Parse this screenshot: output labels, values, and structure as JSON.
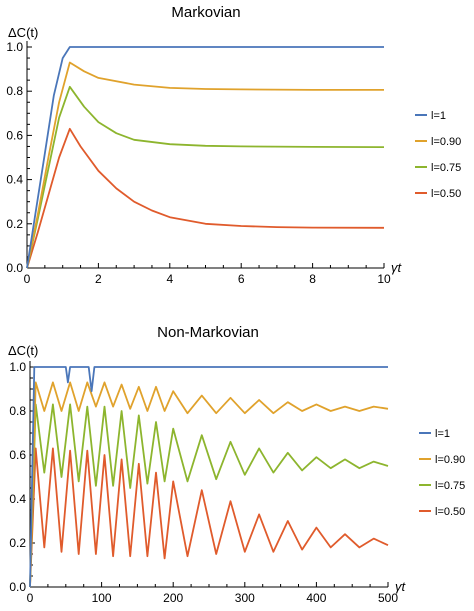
{
  "colors": {
    "l1": "#4a76b9",
    "l090": "#e0a22c",
    "l075": "#8db52e",
    "l050": "#e05b2c"
  },
  "chart_data": [
    {
      "type": "line",
      "title": "Markovian",
      "ylabel": "ΔC(t)",
      "xlabel": "γt",
      "xlim": [
        0,
        10
      ],
      "ylim": [
        0,
        1.0
      ],
      "x_ticks": [
        0,
        2,
        4,
        6,
        8,
        10
      ],
      "y_ticks": [
        0.0,
        0.2,
        0.4,
        0.6,
        0.8,
        1.0
      ],
      "x_tick_labels": [
        "0",
        "2",
        "4",
        "6",
        "8",
        "10"
      ],
      "y_tick_labels": [
        "0.0",
        "0.2",
        "0.4",
        "0.6",
        "0.8",
        "1.0"
      ],
      "legend_position": "right",
      "series": [
        {
          "name": "l=1",
          "color_key": "l1",
          "x": [
            0,
            0.25,
            0.5,
            0.75,
            1.0,
            1.2,
            10
          ],
          "y": [
            0,
            0.26,
            0.52,
            0.78,
            0.95,
            1.0,
            1.0
          ]
        },
        {
          "name": "l=0.90",
          "color_key": "l090",
          "x": [
            0,
            0.3,
            0.6,
            0.9,
            1.2,
            1.6,
            2,
            3,
            4,
            5,
            6,
            8,
            10
          ],
          "y": [
            0,
            0.24,
            0.5,
            0.75,
            0.93,
            0.89,
            0.86,
            0.83,
            0.815,
            0.81,
            0.808,
            0.806,
            0.806
          ]
        },
        {
          "name": "l=0.75",
          "color_key": "l075",
          "x": [
            0,
            0.3,
            0.6,
            0.9,
            1.2,
            1.6,
            2,
            2.5,
            3,
            4,
            5,
            6,
            8,
            10
          ],
          "y": [
            0,
            0.22,
            0.45,
            0.68,
            0.82,
            0.73,
            0.66,
            0.61,
            0.58,
            0.56,
            0.553,
            0.55,
            0.548,
            0.547
          ]
        },
        {
          "name": "l=0.50",
          "color_key": "l050",
          "x": [
            0,
            0.3,
            0.6,
            0.9,
            1.2,
            1.5,
            2,
            2.5,
            3,
            3.5,
            4,
            5,
            6,
            7,
            8,
            10
          ],
          "y": [
            0,
            0.16,
            0.33,
            0.5,
            0.63,
            0.55,
            0.44,
            0.36,
            0.3,
            0.26,
            0.23,
            0.2,
            0.19,
            0.185,
            0.183,
            0.182
          ]
        }
      ]
    },
    {
      "type": "line",
      "title": "Non-Markovian",
      "ylabel": "ΔC(t)",
      "xlabel": "γt",
      "xlim": [
        0,
        500
      ],
      "ylim": [
        0,
        1.0
      ],
      "x_ticks": [
        0,
        100,
        200,
        300,
        400,
        500
      ],
      "y_ticks": [
        0.0,
        0.2,
        0.4,
        0.6,
        0.8,
        1.0
      ],
      "x_tick_labels": [
        "0",
        "100",
        "200",
        "300",
        "400",
        "500"
      ],
      "y_tick_labels": [
        "0.0",
        "0.2",
        "0.4",
        "0.6",
        "0.8",
        "1.0"
      ],
      "legend_position": "right",
      "series": [
        {
          "name": "l=1",
          "color_key": "l1",
          "x": [
            0,
            6,
            50,
            53,
            56,
            82,
            86,
            90,
            500
          ],
          "y": [
            0,
            1.0,
            1.0,
            0.93,
            1.0,
            1.0,
            0.89,
            1.0,
            1.0
          ]
        },
        {
          "name": "l=0.90",
          "color_key": "l090",
          "x": [
            0,
            8,
            20,
            32,
            44,
            56,
            68,
            80,
            92,
            104,
            116,
            128,
            140,
            152,
            164,
            176,
            188,
            200,
            220,
            240,
            260,
            280,
            300,
            320,
            340,
            360,
            380,
            400,
            420,
            440,
            460,
            480,
            500
          ],
          "y": [
            0,
            0.93,
            0.8,
            0.93,
            0.8,
            0.93,
            0.8,
            0.93,
            0.82,
            0.93,
            0.82,
            0.92,
            0.81,
            0.91,
            0.8,
            0.91,
            0.8,
            0.89,
            0.79,
            0.87,
            0.79,
            0.86,
            0.79,
            0.85,
            0.79,
            0.84,
            0.8,
            0.83,
            0.8,
            0.82,
            0.8,
            0.82,
            0.81
          ]
        },
        {
          "name": "l=0.75",
          "color_key": "l075",
          "x": [
            0,
            8,
            20,
            32,
            44,
            56,
            68,
            80,
            92,
            104,
            116,
            128,
            140,
            152,
            164,
            176,
            188,
            200,
            220,
            240,
            260,
            280,
            300,
            320,
            340,
            360,
            380,
            400,
            420,
            440,
            460,
            480,
            500
          ],
          "y": [
            0,
            0.83,
            0.52,
            0.83,
            0.5,
            0.83,
            0.48,
            0.82,
            0.46,
            0.82,
            0.46,
            0.8,
            0.45,
            0.78,
            0.47,
            0.75,
            0.48,
            0.72,
            0.48,
            0.69,
            0.49,
            0.66,
            0.51,
            0.63,
            0.52,
            0.61,
            0.53,
            0.59,
            0.54,
            0.58,
            0.54,
            0.57,
            0.55
          ]
        },
        {
          "name": "l=0.50",
          "color_key": "l050",
          "x": [
            0,
            8,
            20,
            32,
            44,
            56,
            68,
            80,
            92,
            104,
            116,
            128,
            140,
            152,
            164,
            176,
            188,
            200,
            220,
            240,
            260,
            280,
            300,
            320,
            340,
            360,
            380,
            400,
            420,
            440,
            460,
            480,
            500
          ],
          "y": [
            0,
            0.63,
            0.18,
            0.63,
            0.16,
            0.62,
            0.15,
            0.62,
            0.15,
            0.6,
            0.14,
            0.58,
            0.14,
            0.56,
            0.14,
            0.52,
            0.13,
            0.48,
            0.14,
            0.44,
            0.15,
            0.39,
            0.16,
            0.33,
            0.16,
            0.3,
            0.17,
            0.27,
            0.18,
            0.24,
            0.18,
            0.22,
            0.19
          ]
        }
      ]
    }
  ]
}
